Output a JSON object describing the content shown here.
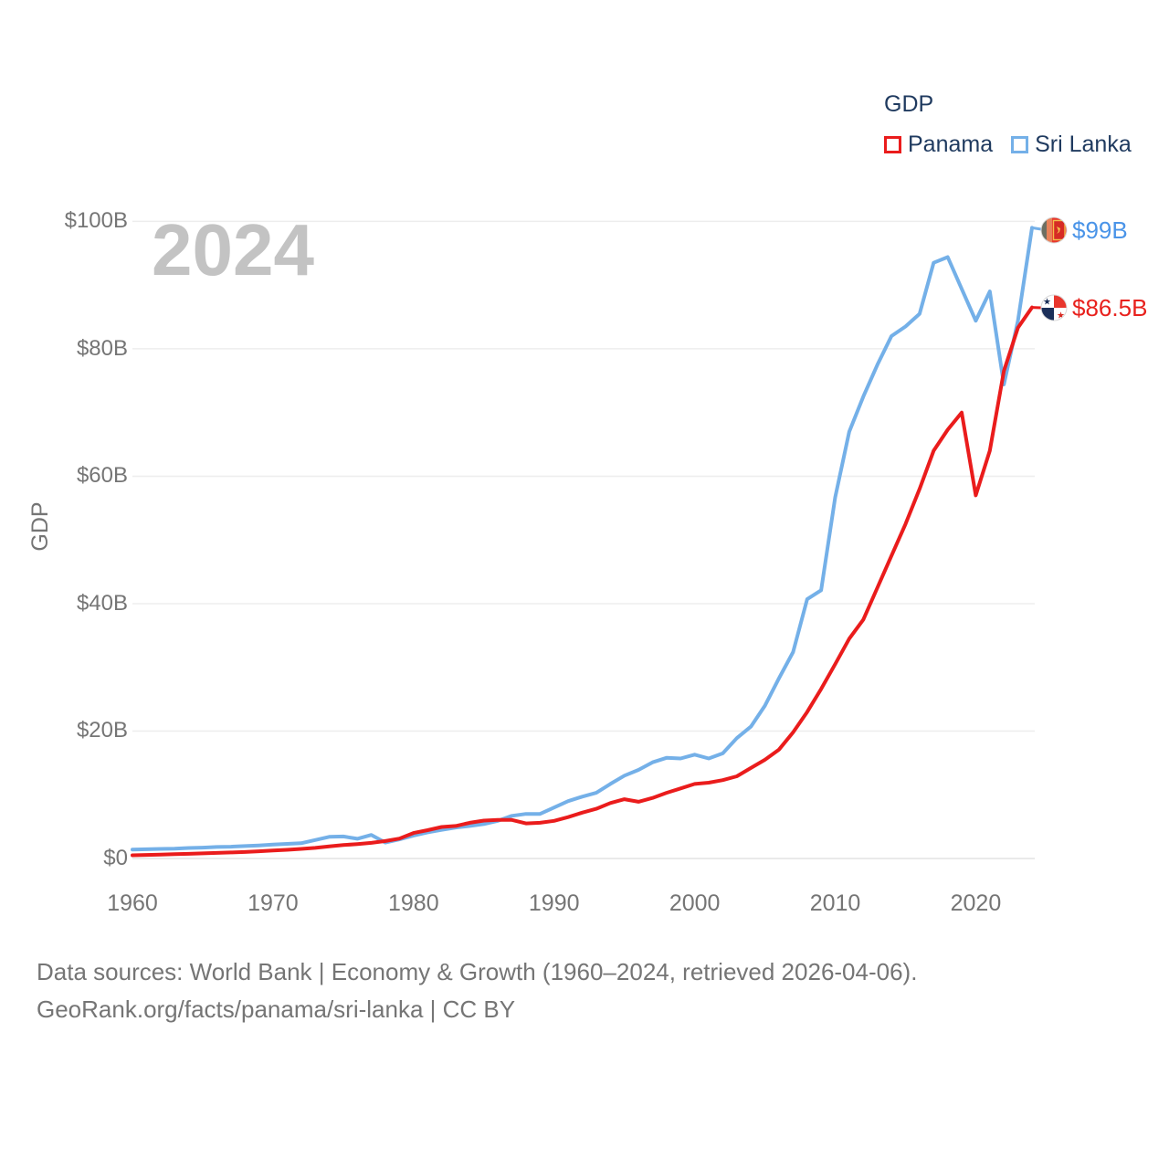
{
  "legend": {
    "title": "GDP",
    "items": [
      {
        "label": "Panama",
        "color": "#ea1c1c"
      },
      {
        "label": "Sri Lanka",
        "color": "#74b0e8"
      }
    ]
  },
  "watermark": "2024",
  "y_axis": {
    "title": "GDP",
    "ticks": [
      {
        "value": 0,
        "label": "$0"
      },
      {
        "value": 20,
        "label": "$20B"
      },
      {
        "value": 40,
        "label": "$40B"
      },
      {
        "value": 60,
        "label": "$60B"
      },
      {
        "value": 80,
        "label": "$80B"
      },
      {
        "value": 100,
        "label": "$100B"
      }
    ]
  },
  "x_axis": {
    "ticks": [
      {
        "value": 1960,
        "label": "1960"
      },
      {
        "value": 1970,
        "label": "1970"
      },
      {
        "value": 1980,
        "label": "1980"
      },
      {
        "value": 1990,
        "label": "1990"
      },
      {
        "value": 2000,
        "label": "2000"
      },
      {
        "value": 2010,
        "label": "2010"
      },
      {
        "value": 2020,
        "label": "2020"
      }
    ]
  },
  "end_labels": {
    "sri_lanka": {
      "label": "$99B",
      "color": "#4a94e8"
    },
    "panama": {
      "label": "$86.5B",
      "color": "#e8211d"
    }
  },
  "footer": {
    "line1": "Data sources: World Bank | Economy & Growth (1960–2024, retrieved 2026-04-06).",
    "line2": "GeoRank.org/facts/panama/sri-lanka | CC BY"
  },
  "chart_data": {
    "type": "line",
    "title": "GDP",
    "ylabel": "GDP",
    "ylim": [
      0,
      100
    ],
    "xlim": [
      1960,
      2024
    ],
    "grid": true,
    "legend_position": "top-right",
    "x": [
      1960,
      1961,
      1962,
      1963,
      1964,
      1965,
      1966,
      1967,
      1968,
      1969,
      1970,
      1971,
      1972,
      1973,
      1974,
      1975,
      1976,
      1977,
      1978,
      1979,
      1980,
      1981,
      1982,
      1983,
      1984,
      1985,
      1986,
      1987,
      1988,
      1989,
      1990,
      1991,
      1992,
      1993,
      1994,
      1995,
      1996,
      1997,
      1998,
      1999,
      2000,
      2001,
      2002,
      2003,
      2004,
      2005,
      2006,
      2007,
      2008,
      2009,
      2010,
      2011,
      2012,
      2013,
      2014,
      2015,
      2016,
      2017,
      2018,
      2019,
      2020,
      2021,
      2022,
      2023,
      2024
    ],
    "series": [
      {
        "name": "Sri Lanka",
        "color": "#74b0e8",
        "end_value_label": "$99B",
        "values": [
          1.4,
          1.45,
          1.5,
          1.55,
          1.65,
          1.7,
          1.8,
          1.85,
          1.95,
          2.05,
          2.2,
          2.3,
          2.4,
          2.9,
          3.4,
          3.45,
          3.1,
          3.7,
          2.5,
          3.0,
          3.6,
          4.1,
          4.5,
          4.85,
          5.1,
          5.4,
          5.9,
          6.7,
          7.0,
          7.0,
          8.0,
          9.0,
          9.7,
          10.3,
          11.7,
          13.0,
          13.9,
          15.1,
          15.8,
          15.7,
          16.3,
          15.7,
          16.5,
          18.9,
          20.7,
          24.0,
          28.3,
          32.4,
          40.7,
          42.1,
          56.7,
          67.0,
          72.5,
          77.5,
          82.0,
          83.5,
          85.5,
          93.5,
          94.4,
          89.4,
          84.4,
          89.0,
          74.4,
          84.4,
          99.0
        ]
      },
      {
        "name": "Panama",
        "color": "#ea1c1c",
        "end_value_label": "$86.5B",
        "values": [
          0.5,
          0.56,
          0.62,
          0.68,
          0.73,
          0.8,
          0.87,
          0.95,
          1.02,
          1.13,
          1.25,
          1.36,
          1.5,
          1.66,
          1.9,
          2.11,
          2.26,
          2.45,
          2.74,
          3.12,
          4.0,
          4.45,
          4.95,
          5.1,
          5.6,
          5.95,
          6.05,
          6.05,
          5.5,
          5.6,
          5.9,
          6.5,
          7.2,
          7.8,
          8.7,
          9.3,
          8.9,
          9.5,
          10.3,
          11.0,
          11.7,
          11.9,
          12.3,
          12.9,
          14.2,
          15.5,
          17.1,
          19.8,
          23.0,
          26.6,
          30.5,
          34.5,
          37.5,
          42.5,
          47.5,
          52.5,
          58.0,
          64.0,
          67.3,
          70.0,
          57.0,
          64.0,
          76.5,
          83.3,
          86.5
        ]
      }
    ]
  }
}
